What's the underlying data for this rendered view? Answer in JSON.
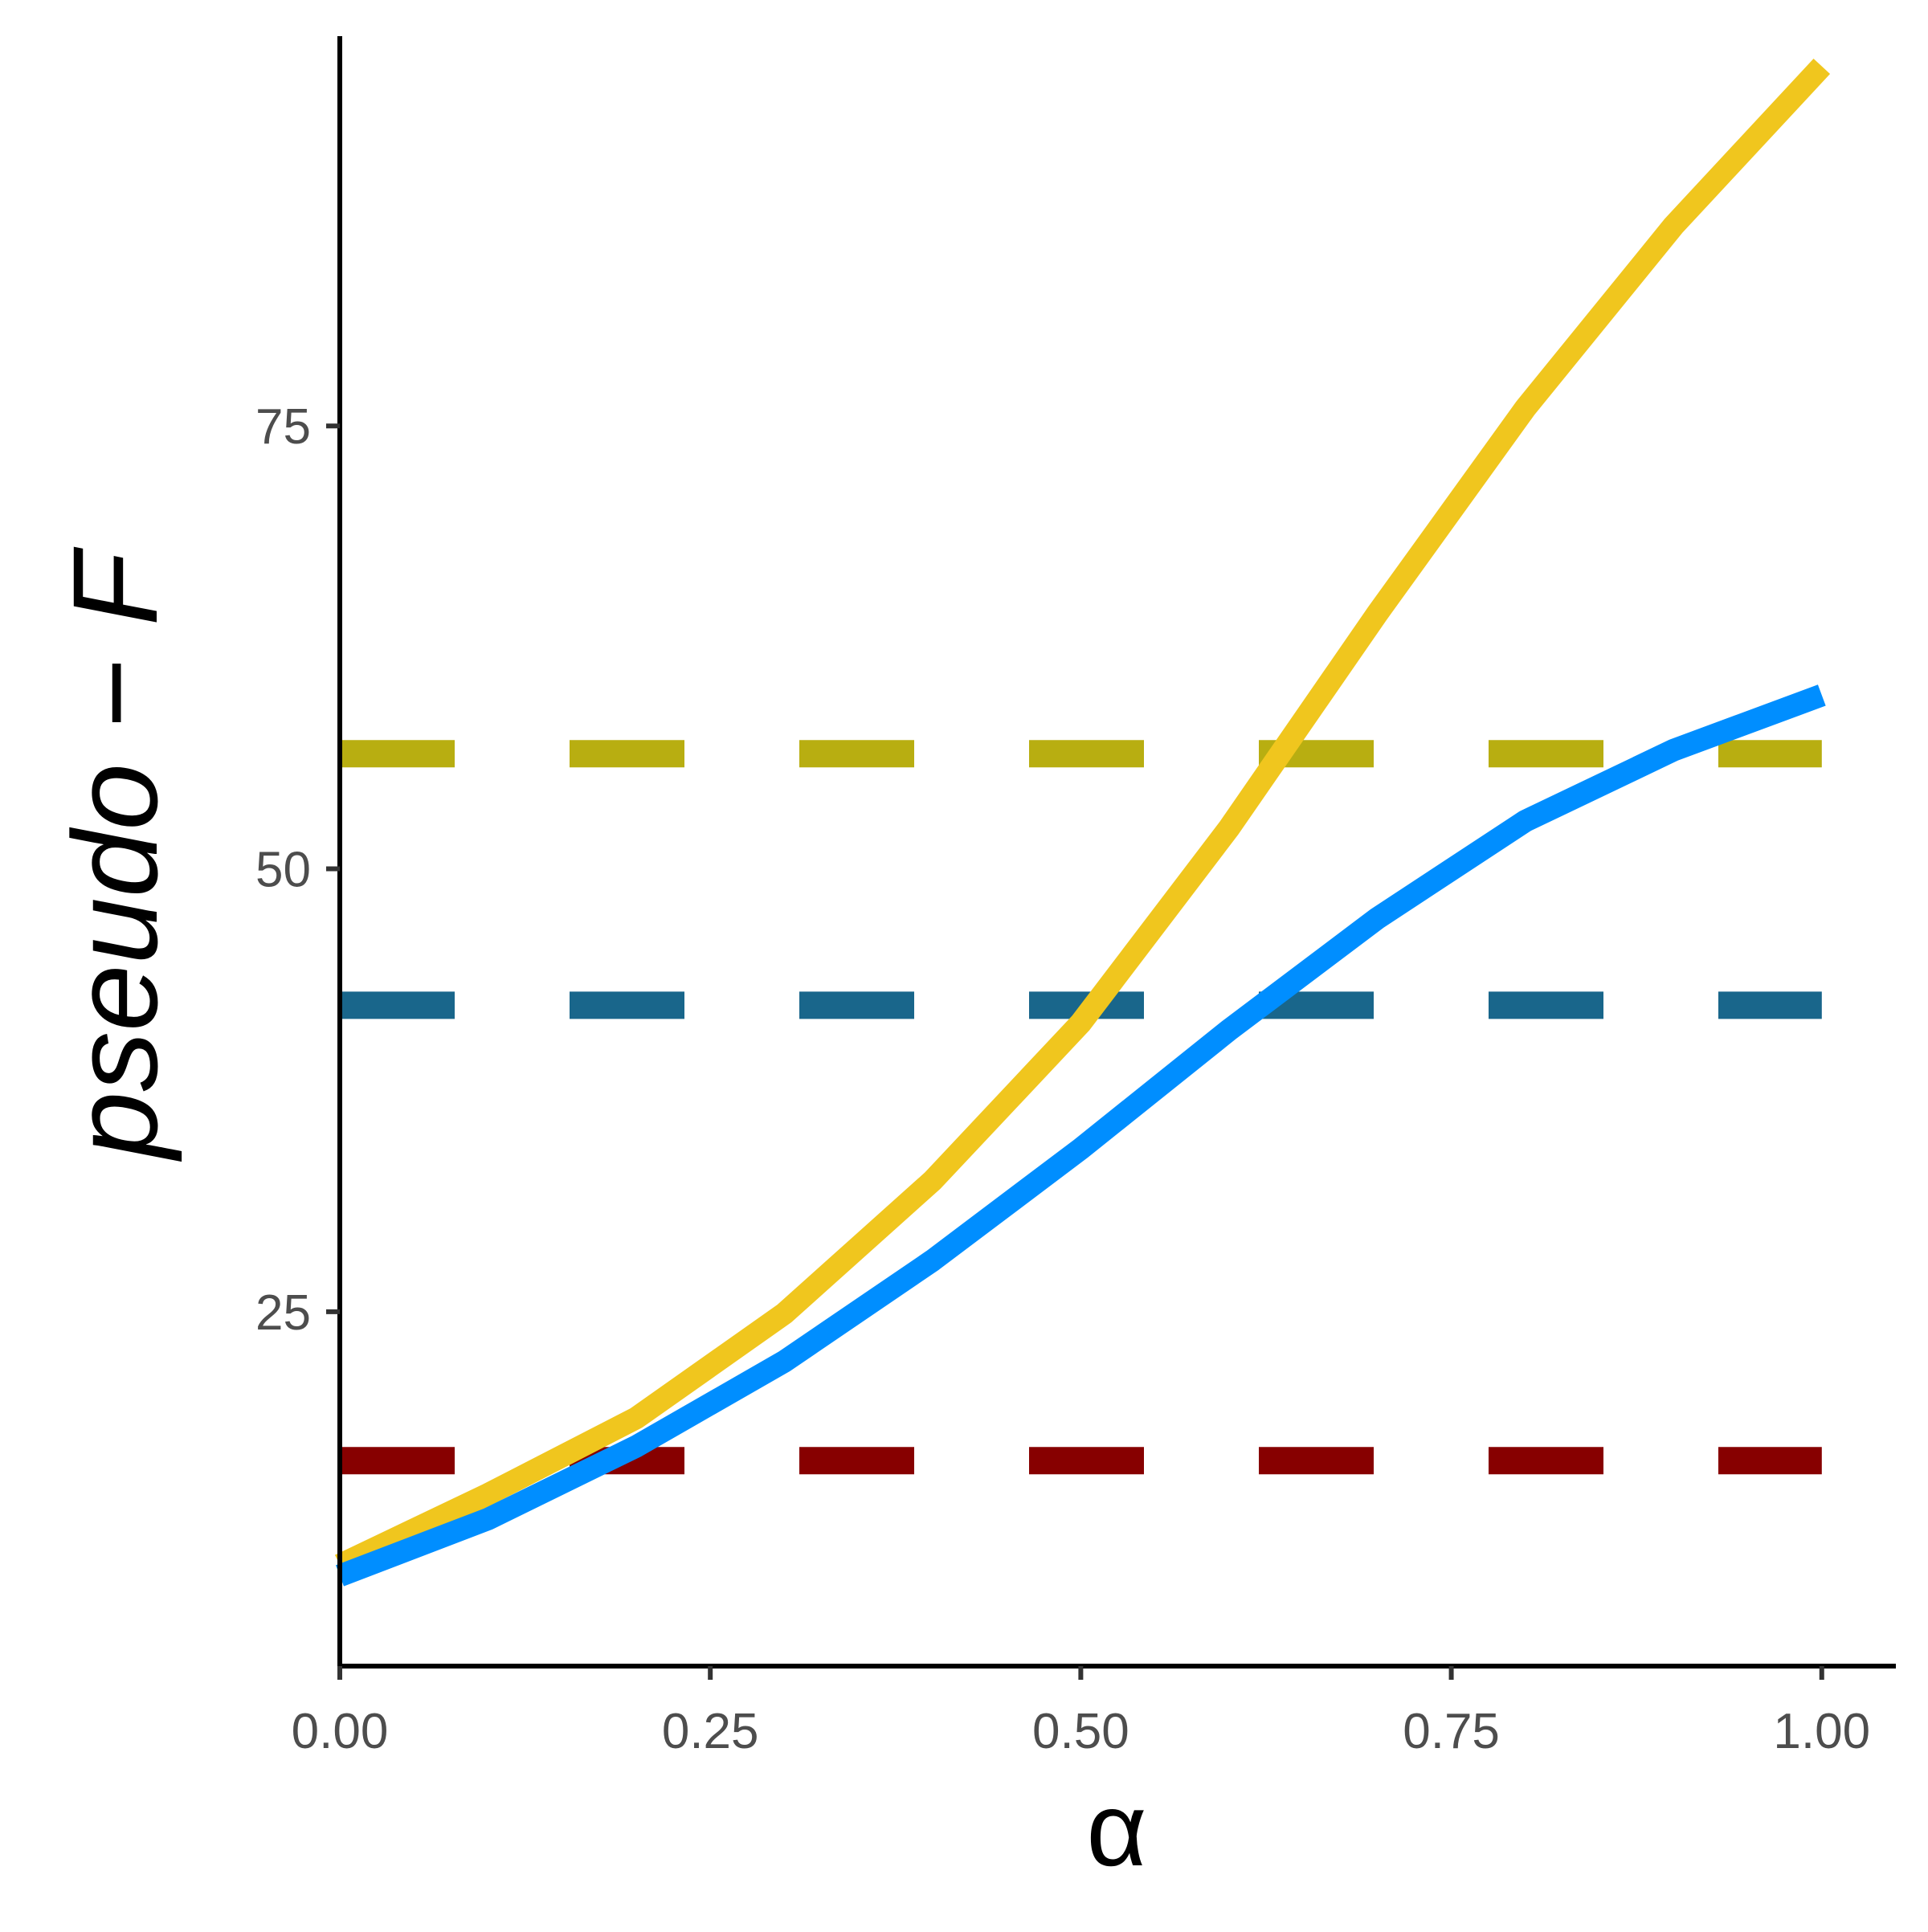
{
  "chart_data": {
    "type": "line",
    "title": "",
    "xlabel": "α",
    "ylabel": "pseudo − F",
    "xlim": [
      0,
      1.05
    ],
    "ylim": [
      5,
      97
    ],
    "x_ticks": [
      {
        "value": 0,
        "label": "0.00"
      },
      {
        "value": 0.25,
        "label": "0.25"
      },
      {
        "value": 0.5,
        "label": "0.50"
      },
      {
        "value": 0.75,
        "label": "0.75"
      },
      {
        "value": 1.0,
        "label": "1.00"
      }
    ],
    "y_ticks": [
      {
        "value": 25,
        "label": "25"
      },
      {
        "value": 50,
        "label": "50"
      },
      {
        "value": 75,
        "label": "75"
      }
    ],
    "grid": false,
    "legend": "none",
    "series": [
      {
        "style": "solid",
        "color": "#F0C61E",
        "x": [
          0,
          0.1,
          0.2,
          0.3,
          0.4,
          0.5,
          0.6,
          0.7,
          0.8,
          0.9,
          1.0
        ],
        "y": [
          10.7,
          14.7,
          19.0,
          24.9,
          32.4,
          41.3,
          52.3,
          64.4,
          76.0,
          86.3,
          95.3
        ]
      },
      {
        "style": "solid",
        "color": "#008EFF",
        "x": [
          0,
          0.1,
          0.2,
          0.3,
          0.4,
          0.5,
          0.6,
          0.7,
          0.8,
          0.9,
          1.0
        ],
        "y": [
          10.1,
          13.3,
          17.4,
          22.2,
          27.9,
          34.2,
          40.9,
          47.2,
          52.7,
          56.7,
          59.8
        ]
      },
      {
        "style": "dashed",
        "color": "#B8AE11",
        "x": [
          0,
          1.0
        ],
        "y": [
          56.5,
          56.5
        ]
      },
      {
        "style": "dashed",
        "color": "#19668B",
        "x": [
          0,
          1.0
        ],
        "y": [
          42.3,
          42.3
        ]
      },
      {
        "style": "dashed",
        "color": "#870000",
        "x": [
          0,
          1.0
        ],
        "y": [
          16.6,
          16.6
        ]
      }
    ]
  }
}
